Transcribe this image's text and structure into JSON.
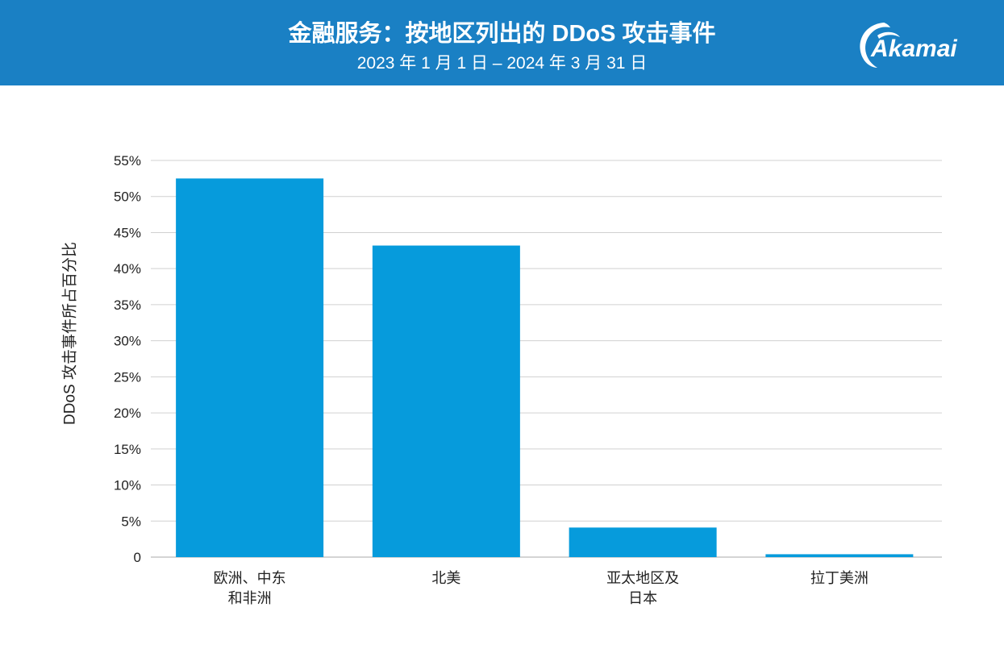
{
  "header": {
    "title": "金融服务：按地区列出的 DDoS 攻击事件",
    "subtitle": "2023 年 1 月 1 日 – 2024 年 3 月 31 日",
    "logo": "Akamai",
    "background_color": "#1a80c4"
  },
  "chart_data": {
    "type": "bar",
    "title": "金融服务：按地区列出的 DDoS 攻击事件",
    "subtitle": "2023 年 1 月 1 日 – 2024 年 3 月 31 日",
    "ylabel": "DDoS 攻击事件所占百分比",
    "xlabel": "",
    "categories": [
      [
        "欧洲、中东",
        "和非洲"
      ],
      [
        "北美"
      ],
      [
        "亚太地区及",
        "日本"
      ],
      [
        "拉丁美洲"
      ]
    ],
    "values": [
      52.5,
      43.2,
      4.1,
      0.4
    ],
    "ylim": [
      0,
      55
    ],
    "yticks": [
      "0",
      "5%",
      "10%",
      "15%",
      "20%",
      "25%",
      "30%",
      "35%",
      "40%",
      "45%",
      "50%",
      "55%"
    ],
    "grid": true,
    "bar_color": "#069bdc"
  }
}
